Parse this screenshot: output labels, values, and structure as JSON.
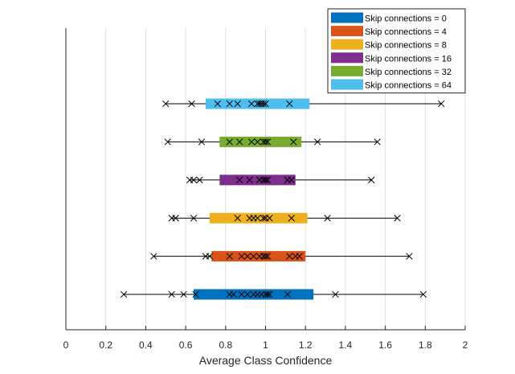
{
  "chart_data": {
    "type": "boxplot",
    "orientation": "horizontal",
    "xlabel": "Average Class Confidence",
    "ylabel": "",
    "xlim": [
      0,
      2
    ],
    "x_ticks": [
      "0",
      "0.2",
      "0.4",
      "0.6",
      "0.8",
      "1",
      "1.2",
      "1.4",
      "1.6",
      "1.8",
      "2"
    ],
    "grid": "vertical",
    "legend_position": "top-right",
    "series": [
      {
        "name": "Skip connections = 0",
        "color": "#0072BD",
        "whisker": [
          0.29,
          1.79
        ],
        "box": [
          0.64,
          1.24
        ],
        "points": [
          0.29,
          0.53,
          0.59,
          0.65,
          0.82,
          0.84,
          0.88,
          0.91,
          0.94,
          0.96,
          0.98,
          1.0,
          1.01,
          1.02,
          1.11,
          1.35,
          1.79
        ]
      },
      {
        "name": "Skip connections = 4",
        "color": "#D95319",
        "whisker": [
          0.44,
          1.72
        ],
        "box": [
          0.73,
          1.2
        ],
        "points": [
          0.44,
          0.7,
          0.72,
          0.82,
          0.88,
          0.91,
          0.94,
          0.97,
          0.99,
          1.0,
          1.01,
          1.12,
          1.15,
          1.17,
          1.72
        ]
      },
      {
        "name": "Skip connections = 8",
        "color": "#EDB120",
        "whisker": [
          0.53,
          1.66
        ],
        "box": [
          0.72,
          1.21
        ],
        "points": [
          0.53,
          0.55,
          0.64,
          0.86,
          0.92,
          0.94,
          0.96,
          0.99,
          1.0,
          1.02,
          1.13,
          1.31,
          1.66
        ]
      },
      {
        "name": "Skip connections = 16",
        "color": "#7E2F8E",
        "whisker": [
          0.62,
          1.53
        ],
        "box": [
          0.77,
          1.15
        ],
        "points": [
          0.62,
          0.64,
          0.67,
          0.87,
          0.92,
          0.97,
          0.99,
          1.0,
          1.01,
          1.11,
          1.13,
          1.53
        ]
      },
      {
        "name": "Skip connections = 32",
        "color": "#77AC30",
        "whisker": [
          0.51,
          1.56
        ],
        "box": [
          0.77,
          1.18
        ],
        "points": [
          0.51,
          0.68,
          0.82,
          0.87,
          0.93,
          0.96,
          0.99,
          1.0,
          1.01,
          1.14,
          1.26,
          1.56
        ]
      },
      {
        "name": "Skip connections = 64",
        "color": "#4DBEEE",
        "whisker": [
          0.5,
          1.88
        ],
        "box": [
          0.7,
          1.22
        ],
        "points": [
          0.5,
          0.63,
          0.76,
          0.82,
          0.86,
          0.93,
          0.96,
          0.97,
          0.98,
          0.99,
          1.0,
          1.12,
          1.88
        ]
      }
    ]
  }
}
